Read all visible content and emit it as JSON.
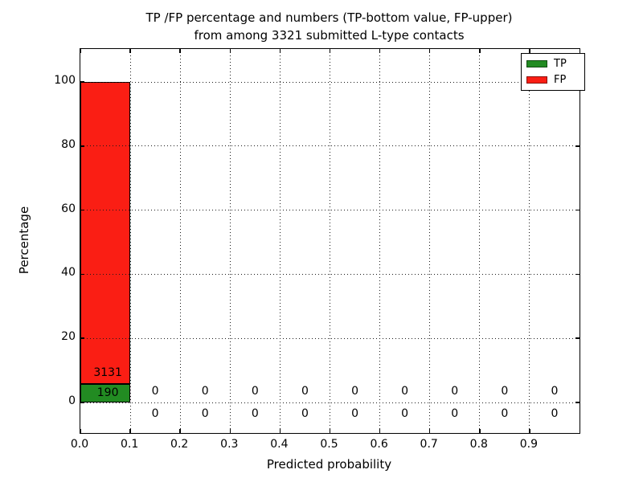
{
  "figure": {
    "title_line1": "TP /FP percentage and numbers (TP-bottom value, FP-upper)",
    "title_line2": "from among 3321 submitted L-type contacts",
    "xlabel": "Predicted probability",
    "ylabel": "Percentage"
  },
  "legend": {
    "position": "upper-right",
    "items": [
      {
        "label": "TP",
        "color": "#228B22"
      },
      {
        "label": "FP",
        "color": "#FA1E14"
      }
    ]
  },
  "chart_data": {
    "type": "bar",
    "stacked": true,
    "title": "TP /FP percentage and numbers (TP-bottom value, FP-upper) from among 3321 submitted L-type contacts",
    "xlabel": "Predicted probability",
    "ylabel": "Percentage",
    "total_submitted_contacts": 3321,
    "bin_edges": [
      0.0,
      0.1,
      0.2,
      0.3,
      0.4,
      0.5,
      0.6,
      0.7,
      0.8,
      0.9,
      1.0
    ],
    "series": [
      {
        "name": "TP",
        "color": "#228B22",
        "counts": [
          190,
          0,
          0,
          0,
          0,
          0,
          0,
          0,
          0,
          0
        ],
        "percent": [
          5.72,
          0,
          0,
          0,
          0,
          0,
          0,
          0,
          0,
          0
        ]
      },
      {
        "name": "FP",
        "color": "#FA1E14",
        "counts": [
          3131,
          0,
          0,
          0,
          0,
          0,
          0,
          0,
          0,
          0
        ],
        "percent": [
          94.28,
          0,
          0,
          0,
          0,
          0,
          0,
          0,
          0,
          0
        ]
      }
    ],
    "xticks": [
      0.0,
      0.1,
      0.2,
      0.3,
      0.4,
      0.5,
      0.6,
      0.7,
      0.8,
      0.9
    ],
    "xtick_labels": [
      "0.0",
      "0.1",
      "0.2",
      "0.3",
      "0.4",
      "0.5",
      "0.6",
      "0.7",
      "0.8",
      "0.9"
    ],
    "yticks": [
      0,
      20,
      40,
      60,
      80,
      100
    ],
    "ytick_labels": [
      "0",
      "20",
      "40",
      "60",
      "80",
      "100"
    ],
    "xlim": [
      0.0,
      1.0
    ],
    "ylim": [
      -9.5,
      110.2
    ],
    "grid": {
      "style": "dotted",
      "color": "#000000",
      "drawn_above_bars": true
    },
    "legend_position": "upper-right",
    "annotations": [
      {
        "text": "3131",
        "x": 0.055,
        "y": 9.3
      },
      {
        "text": "190",
        "x": 0.055,
        "y": 3.0
      },
      {
        "text": "0",
        "x": 0.15,
        "y": 3.6
      },
      {
        "text": "0",
        "x": 0.25,
        "y": 3.6
      },
      {
        "text": "0",
        "x": 0.35,
        "y": 3.6
      },
      {
        "text": "0",
        "x": 0.45,
        "y": 3.6
      },
      {
        "text": "0",
        "x": 0.55,
        "y": 3.6
      },
      {
        "text": "0",
        "x": 0.65,
        "y": 3.6
      },
      {
        "text": "0",
        "x": 0.75,
        "y": 3.6
      },
      {
        "text": "0",
        "x": 0.85,
        "y": 3.6
      },
      {
        "text": "0",
        "x": 0.95,
        "y": 3.6
      },
      {
        "text": "0",
        "x": 0.15,
        "y": -3.4
      },
      {
        "text": "0",
        "x": 0.25,
        "y": -3.4
      },
      {
        "text": "0",
        "x": 0.35,
        "y": -3.4
      },
      {
        "text": "0",
        "x": 0.45,
        "y": -3.4
      },
      {
        "text": "0",
        "x": 0.55,
        "y": -3.4
      },
      {
        "text": "0",
        "x": 0.65,
        "y": -3.4
      },
      {
        "text": "0",
        "x": 0.75,
        "y": -3.4
      },
      {
        "text": "0",
        "x": 0.85,
        "y": -3.4
      },
      {
        "text": "0",
        "x": 0.95,
        "y": -3.4
      }
    ]
  }
}
